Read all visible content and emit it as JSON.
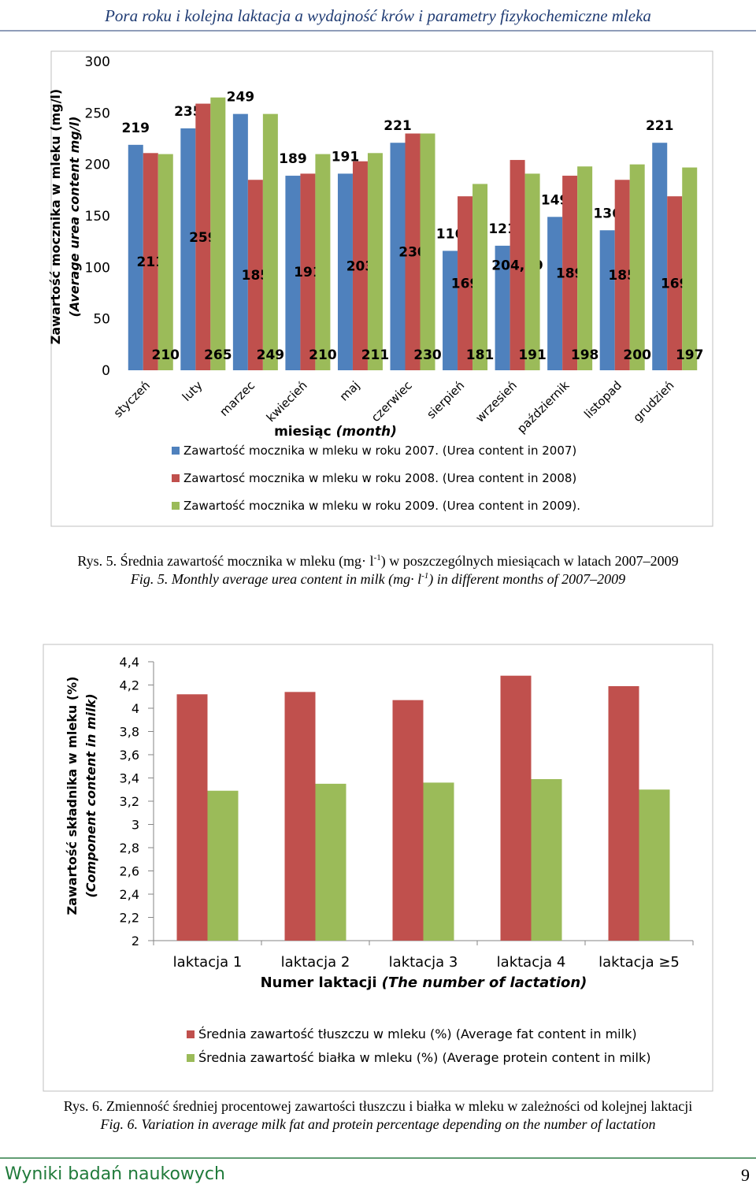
{
  "header": {
    "title": "Pora roku i kolejna laktacja a wydajność krów i parametry fizykochemiczne mleka"
  },
  "chart_data": [
    {
      "type": "bar",
      "y_label": [
        "Zawartość mocznika w mleku (mg/l)",
        "(Average urea content mg/l)"
      ],
      "x_label": [
        "miesiąc",
        "(month)"
      ],
      "categories": [
        "styczeń",
        "luty",
        "marzec",
        "kwiecień",
        "maj",
        "czerwiec",
        "sierpień",
        "wrzesień",
        "październik",
        "listopad",
        "grudzień"
      ],
      "series": [
        {
          "name": "Zawartość mocznika w mleku w roku 2007. (Urea content in 2007)",
          "color": "#4f81bd",
          "values": [
            219,
            235,
            249,
            189,
            191,
            221,
            116,
            121,
            149,
            136,
            221
          ]
        },
        {
          "name": "Zawartosć mocznika w mleku w roku 2008. (Urea content in 2008)",
          "color": "#c0504d",
          "values": [
            211,
            259,
            185,
            191,
            203,
            230,
            169,
            204.29,
            189,
            185,
            169
          ],
          "value_labels": [
            "211",
            "259",
            "185",
            "191",
            "203",
            "230",
            "169",
            "204,29",
            "189",
            "185",
            "169"
          ]
        },
        {
          "name": "Zawartość mocznika w mleku w roku 2009. (Urea content in 2009).",
          "color": "#9bbb59",
          "values": [
            210,
            265,
            249,
            210,
            211,
            230,
            181,
            191,
            198,
            200,
            197
          ]
        }
      ],
      "ylim": [
        0,
        300
      ],
      "yticks": [
        0,
        50,
        100,
        150,
        200,
        250,
        300
      ]
    },
    {
      "type": "bar",
      "y_label": [
        "Zawartość składnika w mleku (%)",
        "(Component content in milk)"
      ],
      "x_label": [
        "Numer laktacji",
        "(The number of lactation)"
      ],
      "categories": [
        "laktacja 1",
        "laktacja 2",
        "laktacja 3",
        "laktacja 4",
        "laktacja ≥5"
      ],
      "series": [
        {
          "name": "Średnia zawartość tłuszczu w mleku (%) (Average fat content in milk)",
          "color": "#c0504d",
          "values": [
            4.12,
            4.14,
            4.07,
            4.28,
            4.19
          ]
        },
        {
          "name": "Średnia zawartość białka w mleku (%) (Average protein content in milk)",
          "color": "#9bbb59",
          "values": [
            3.29,
            3.35,
            3.36,
            3.39,
            3.3
          ]
        }
      ],
      "ylim": [
        2,
        4.4
      ],
      "yticks": [
        2,
        {
          "value": 2.2,
          "label": "2,2"
        },
        {
          "value": 2.4,
          "label": "2,4"
        },
        {
          "value": 2.6,
          "label": "2,6"
        },
        {
          "value": 2.8,
          "label": "2,8"
        },
        3,
        {
          "value": 3.2,
          "label": "3,2"
        },
        {
          "value": 3.4,
          "label": "3,4"
        },
        {
          "value": 3.6,
          "label": "3,6"
        },
        {
          "value": 3.8,
          "label": "3,8"
        },
        4,
        {
          "value": 4.2,
          "label": "4,2"
        },
        {
          "value": 4.4,
          "label": "4,4"
        }
      ]
    }
  ],
  "captions": [
    {
      "pl": [
        "Rys. 5. Średnia  zawartość mocznika w mleku (mg· l",
        "-1",
        ") w poszczególnych miesiącach w latach 2007–2009"
      ],
      "en": [
        "Fig. 5. Monthly average urea content in milk (mg· l",
        "-1",
        ") in different months of 2007–2009"
      ]
    },
    {
      "pl": [
        "Rys. 6. Zmienność średniej procentowej zawartości tłuszczu i białka w mleku w zależności od kolejnej laktacji"
      ],
      "en": [
        "Fig. 6. Variation in average milk fat and protein percentage depending on the number of lactation"
      ]
    }
  ],
  "footer": {
    "text": "Wyniki badań naukowych",
    "page": "9"
  }
}
